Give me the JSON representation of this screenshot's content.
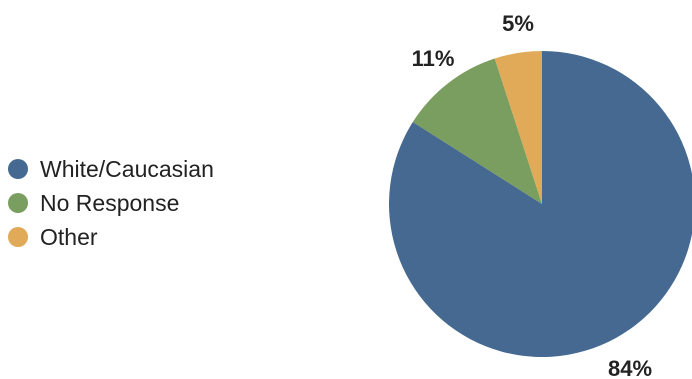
{
  "chart_data": {
    "type": "pie",
    "slices": [
      {
        "label": "White/Caucasian",
        "value": 84,
        "display": "84%",
        "color": "#456991"
      },
      {
        "label": "No Response",
        "value": 11,
        "display": "11%",
        "color": "#7a9e5f"
      },
      {
        "label": "Other",
        "value": 5,
        "display": "5%",
        "color": "#e0aa58"
      }
    ],
    "legend_position": "left",
    "start_angle": "top",
    "direction": "clockwise"
  }
}
